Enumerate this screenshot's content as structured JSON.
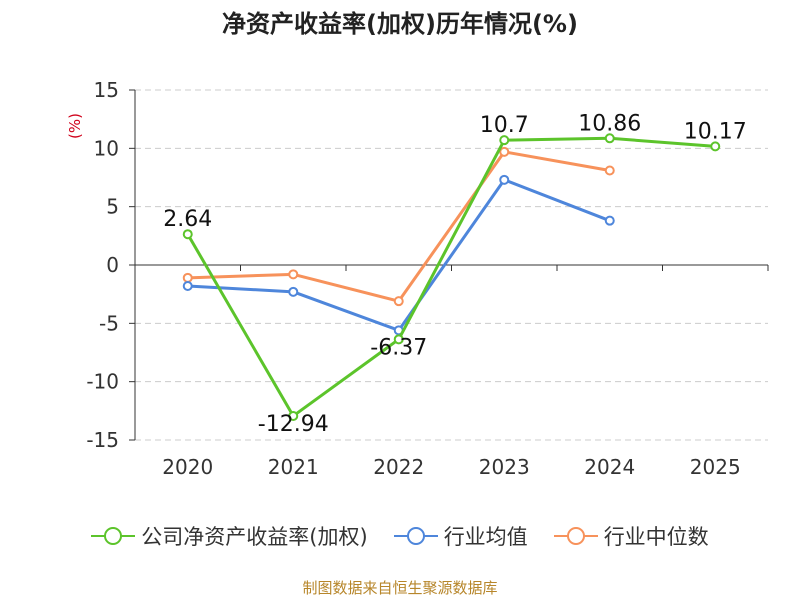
{
  "chart_data": {
    "type": "line",
    "title": "净资产收益率(加权)历年情况(%)",
    "ylabel": "(%)",
    "xlabel": "",
    "categories": [
      "2020",
      "2021",
      "2022",
      "2023",
      "2024",
      "2025"
    ],
    "ylim": [
      -15,
      15
    ],
    "yticks": [
      15,
      10,
      5,
      0,
      -5,
      -10,
      -15
    ],
    "grid": true,
    "legend_position": "bottom",
    "series": [
      {
        "name": "公司净资产收益率(加权)",
        "color": "#5cc42b",
        "values": [
          2.64,
          -12.94,
          -6.37,
          10.7,
          10.86,
          10.17
        ],
        "labels": [
          "2.64",
          "-12.94",
          "-6.37",
          "10.7",
          "10.86",
          "10.17"
        ]
      },
      {
        "name": "行业均值",
        "color": "#4e86db",
        "values": [
          -1.8,
          -2.3,
          -5.6,
          7.3,
          3.8,
          null
        ]
      },
      {
        "name": "行业中位数",
        "color": "#f7925b",
        "values": [
          -1.1,
          -0.8,
          -3.1,
          9.7,
          8.1,
          null
        ]
      }
    ]
  },
  "source": "制图数据来自恒生聚源数据库"
}
